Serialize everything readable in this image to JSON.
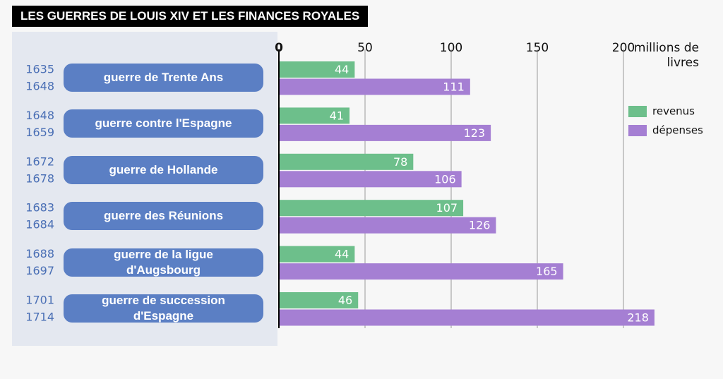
{
  "chart_data": {
    "type": "bar",
    "orientation": "horizontal",
    "title": "LES GUERRES DE LOUIS XIV ET LES FINANCES ROYALES",
    "x_label": "millions de livres",
    "categories": [
      "guerre de Trente Ans",
      "guerre contre l'Espagne",
      "guerre de Hollande",
      "guerre des Réunions",
      "guerre de la ligue d'Augsbourg",
      "guerre de succession d'Espagne"
    ],
    "periods": [
      {
        "start": "1635",
        "end": "1648"
      },
      {
        "start": "1648",
        "end": "1659"
      },
      {
        "start": "1672",
        "end": "1678"
      },
      {
        "start": "1683",
        "end": "1684"
      },
      {
        "start": "1688",
        "end": "1697"
      },
      {
        "start": "1701",
        "end": "1714"
      }
    ],
    "series": [
      {
        "name": "revenus",
        "color": "#6dbf8b",
        "values": [
          44,
          41,
          78,
          107,
          44,
          46
        ]
      },
      {
        "name": "dépenses",
        "color": "#a57fd3",
        "values": [
          111,
          123,
          106,
          126,
          165,
          218
        ]
      }
    ],
    "xlim": [
      0,
      220
    ],
    "xticks": [
      0,
      50,
      100,
      150,
      200
    ],
    "grid": true,
    "legend": "right"
  }
}
